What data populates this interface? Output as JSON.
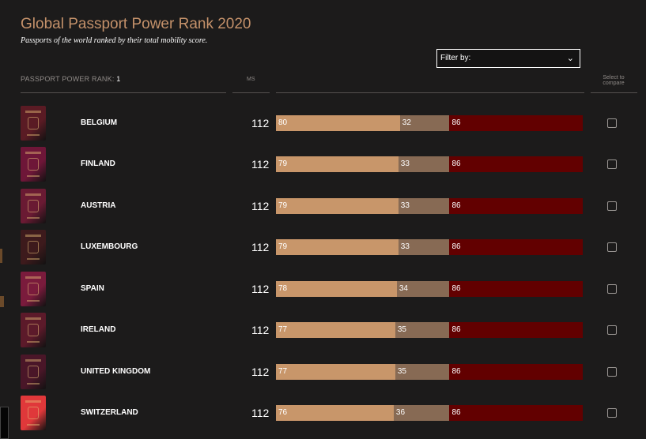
{
  "header": {
    "title": "Global Passport Power Rank 2020",
    "subtitle": "Passports of the world ranked by their total mobility score."
  },
  "filter": {
    "label": "Filter by:",
    "icon": "chevron-down-icon"
  },
  "table_header": {
    "rank_label": "PASSPORT POWER RANK:",
    "rank_value": "1",
    "ms_label": "MS",
    "compare_label": "Select to compare"
  },
  "colors": {
    "visa_free": "#c8966a",
    "visa_on_arrival": "#876a54",
    "visa_required": "#620000",
    "title": "#c4916a"
  },
  "rows": [
    {
      "country": "BELGIUM",
      "ms": "112",
      "a": "80",
      "b": "32",
      "c": "86",
      "passport_color": "#5a1b24"
    },
    {
      "country": "FINLAND",
      "ms": "112",
      "a": "79",
      "b": "33",
      "c": "86",
      "passport_color": "#6e1638"
    },
    {
      "country": "AUSTRIA",
      "ms": "112",
      "a": "79",
      "b": "33",
      "c": "86",
      "passport_color": "#6a1a33"
    },
    {
      "country": "LUXEMBOURG",
      "ms": "112",
      "a": "79",
      "b": "33",
      "c": "86",
      "passport_color": "#3d1a1c"
    },
    {
      "country": "SPAIN",
      "ms": "112",
      "a": "78",
      "b": "34",
      "c": "86",
      "passport_color": "#7a1b3c"
    },
    {
      "country": "IRELAND",
      "ms": "112",
      "a": "77",
      "b": "35",
      "c": "86",
      "passport_color": "#5c1a2a"
    },
    {
      "country": "UNITED KINGDOM",
      "ms": "112",
      "a": "77",
      "b": "35",
      "c": "86",
      "passport_color": "#4a1628"
    },
    {
      "country": "SWITZERLAND",
      "ms": "112",
      "a": "76",
      "b": "36",
      "c": "86",
      "passport_color": "#e0383a"
    }
  ]
}
